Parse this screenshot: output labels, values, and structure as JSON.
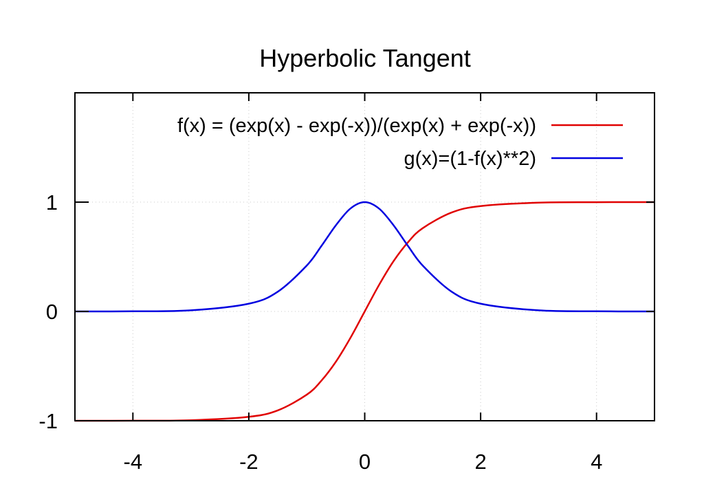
{
  "chart_data": {
    "type": "line",
    "title": "Hyperbolic Tangent",
    "xlabel": "",
    "ylabel": "",
    "xlim": [
      -5,
      5
    ],
    "ylim": [
      -1,
      2
    ],
    "x_ticks": [
      -4,
      -2,
      0,
      2,
      4
    ],
    "x_tick_labels": [
      "-4",
      "-2",
      "0",
      "2",
      "4"
    ],
    "y_ticks": [
      -1,
      0,
      1
    ],
    "y_tick_labels": [
      "-1",
      "0",
      "1"
    ],
    "grid": true,
    "legend_position": "top-right",
    "x": [
      -5,
      -4,
      -3,
      -2,
      -1.5,
      -1,
      -0.75,
      -0.5,
      -0.25,
      0,
      0.25,
      0.5,
      0.75,
      1,
      1.5,
      2,
      3,
      4,
      5
    ],
    "series": [
      {
        "name": "f(x) = (exp(x) - exp(-x))/(exp(x) + exp(-x))",
        "color": "#e00000",
        "values": [
          -0.9999,
          -0.9993,
          -0.9951,
          -0.964,
          -0.9051,
          -0.7616,
          -0.6351,
          -0.4621,
          -0.2449,
          0,
          0.2449,
          0.4621,
          0.6351,
          0.7616,
          0.9051,
          0.964,
          0.9951,
          0.9993,
          0.9999
        ]
      },
      {
        "name": "g(x)=(1-f(x)**2)",
        "color": "#0000e0",
        "values": [
          0.0002,
          0.0013,
          0.0099,
          0.0707,
          0.1807,
          0.42,
          0.5966,
          0.7864,
          0.94,
          1,
          0.94,
          0.7864,
          0.5966,
          0.42,
          0.1807,
          0.0707,
          0.0099,
          0.0013,
          0.0002
        ]
      }
    ]
  }
}
